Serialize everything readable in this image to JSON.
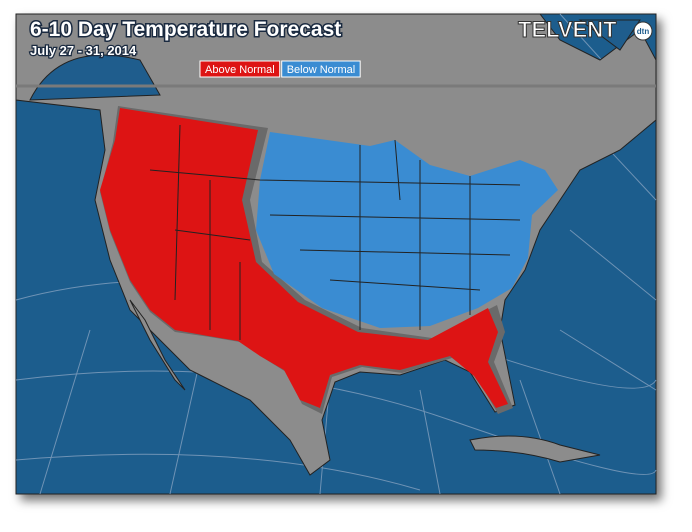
{
  "header": {
    "title": "6-10 Day Temperature Forecast",
    "subtitle": "July 27 - 31, 2014",
    "logo": "TELVENT",
    "logo_badge": "dtn"
  },
  "legend": {
    "items": [
      {
        "label": "Above Normal",
        "color": "#dd1414"
      },
      {
        "label": "Below Normal",
        "color": "#3a8cd2"
      }
    ]
  }
}
